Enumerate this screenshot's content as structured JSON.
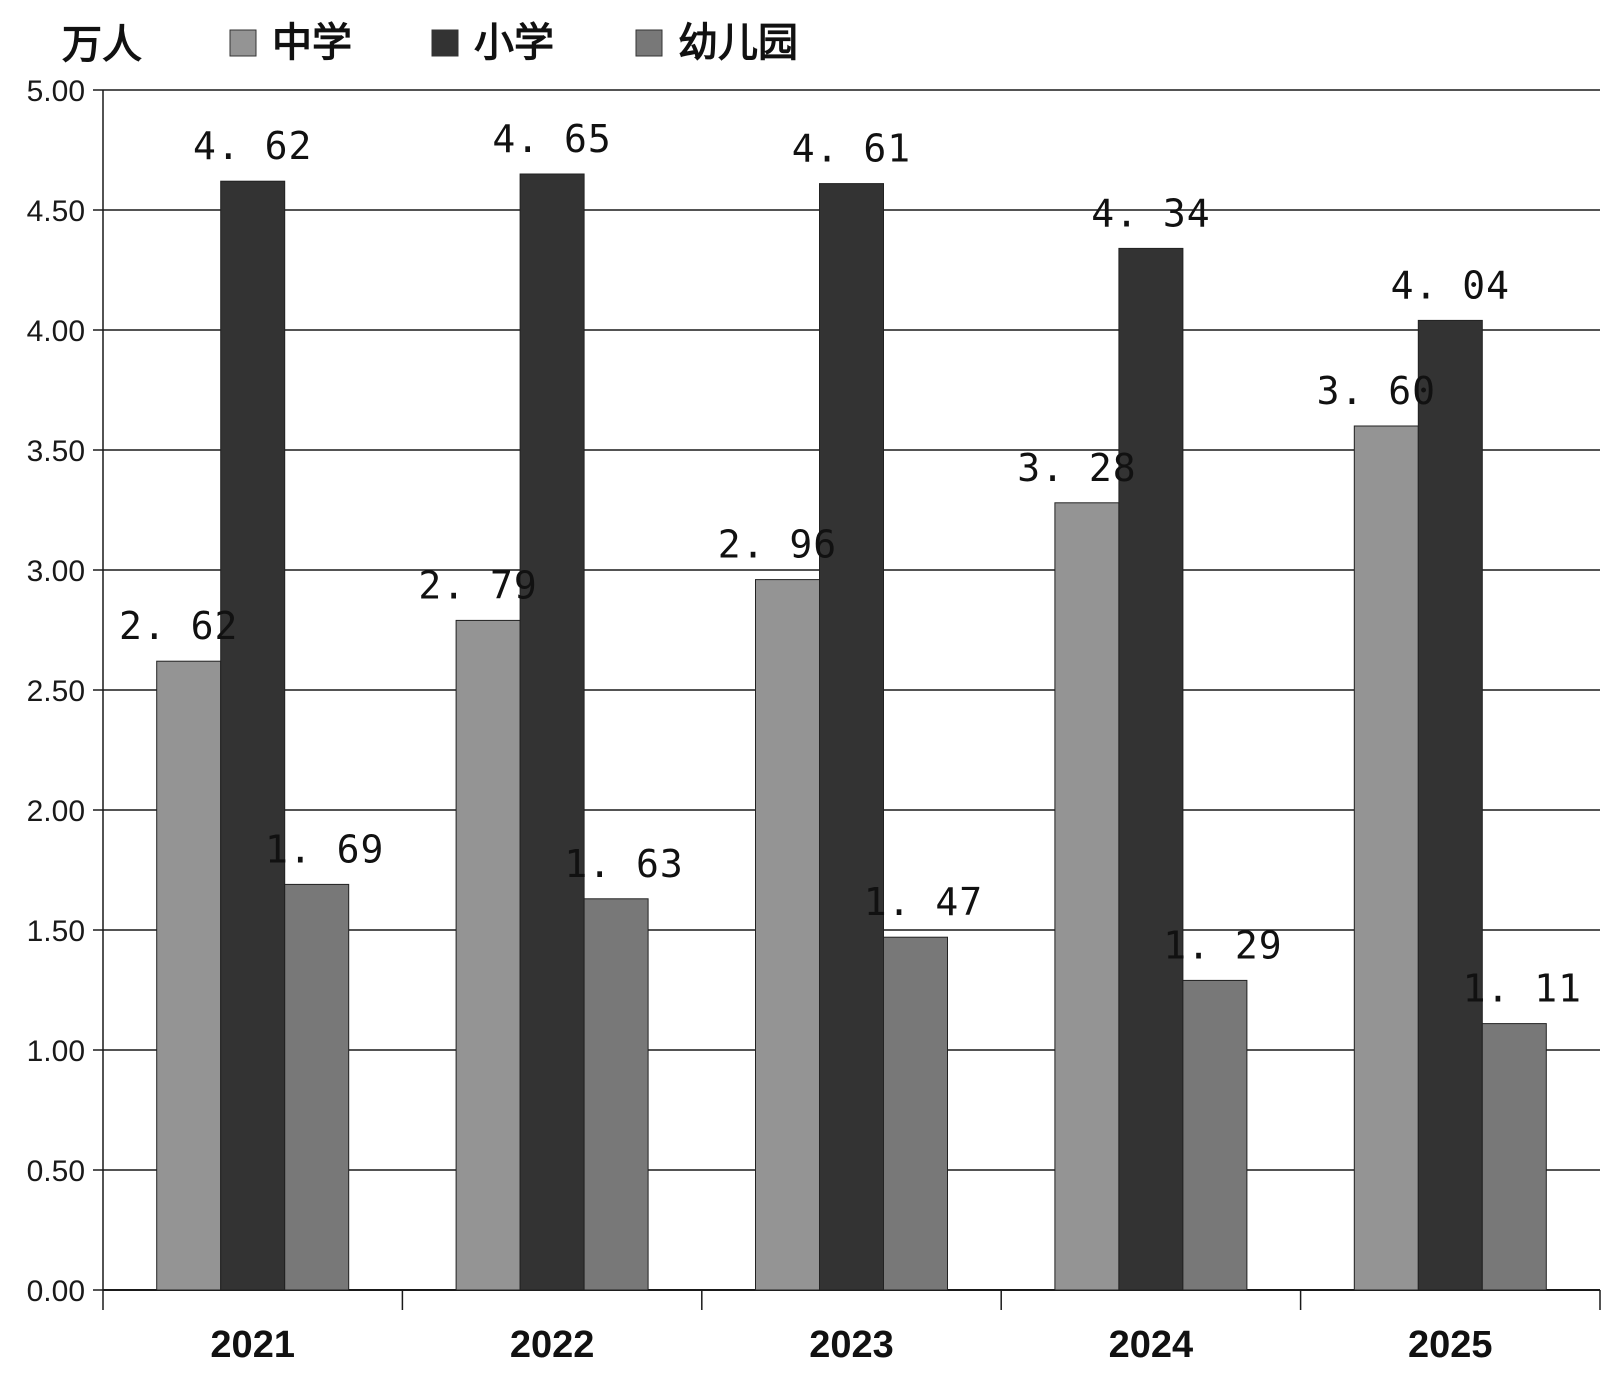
{
  "chart_data": {
    "type": "bar",
    "unit": "万人",
    "categories": [
      "2021",
      "2022",
      "2023",
      "2024",
      "2025"
    ],
    "series": [
      {
        "name": "中学",
        "color": "#949494",
        "values": [
          2.62,
          2.79,
          2.96,
          3.28,
          3.6
        ]
      },
      {
        "name": "小学",
        "color": "#333333",
        "values": [
          4.62,
          4.65,
          4.61,
          4.34,
          4.04
        ]
      },
      {
        "name": "幼儿园",
        "color": "#787878",
        "values": [
          1.69,
          1.63,
          1.47,
          1.29,
          1.11
        ]
      }
    ],
    "data_labels": [
      [
        "2. 62",
        "2. 79",
        "2. 96",
        "3. 28",
        "3. 60"
      ],
      [
        "4. 62",
        "4. 65",
        "4. 61",
        "4. 34",
        "4. 04"
      ],
      [
        "1. 69",
        "1. 63",
        "1. 47",
        "1. 29",
        "1. 11"
      ]
    ],
    "ylim": [
      0,
      5
    ],
    "yticks": [
      "0.00",
      "0.50",
      "1.00",
      "1.50",
      "2.00",
      "2.50",
      "3.00",
      "3.50",
      "4.00",
      "4.50",
      "5.00"
    ],
    "grid": true,
    "legend_position": "top"
  }
}
